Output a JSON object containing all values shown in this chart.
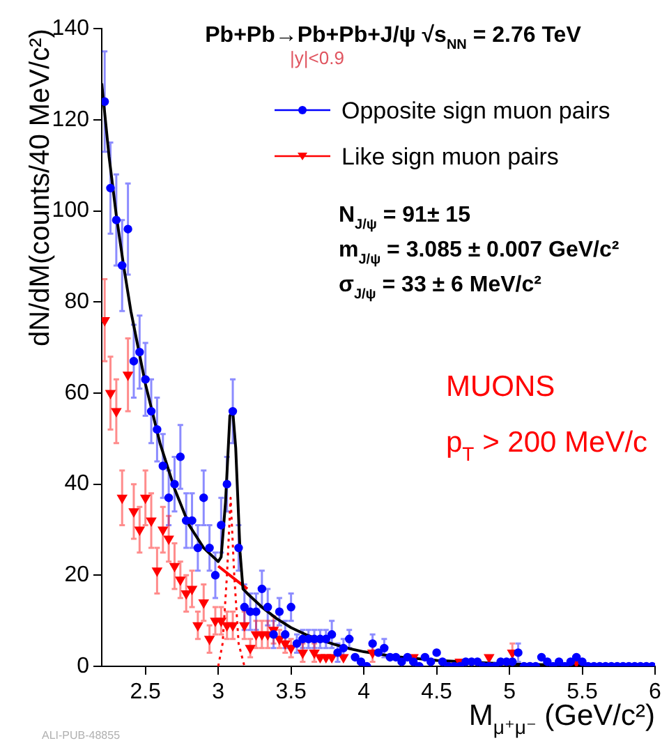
{
  "chart_data": {
    "type": "scatter",
    "title": "Pb+Pb→Pb+Pb+J/ψ √s$_{NN}$ = 2.76 TeV",
    "xlabel": "M$_{μ⁺μ⁻}$ (GeV/c²)",
    "ylabel": "dN/dM(counts/40 MeV/c²)",
    "xlim": [
      2.2,
      6
    ],
    "xticks": [
      2.5,
      3,
      3.5,
      4,
      4.5,
      5,
      5.5,
      6
    ],
    "ylim": [
      0,
      140
    ],
    "yticks": [
      0,
      20,
      40,
      60,
      80,
      100,
      120,
      140
    ],
    "grid": false,
    "legend": "top right",
    "annotations": [
      "|y|<0.9",
      "N$_{J/ψ}$ = 91± 15",
      "m$_{J/ψ}$ = 3.085 ± 0.007 GeV/c²",
      "σ$_{J/ψ}$ = 33 ± 6 MeV/c²",
      "MUONS",
      "p$_{T}$ > 200 MeV/c",
      "ALI-PUB-48855"
    ],
    "series": [
      {
        "name": "Opposite sign muon pairs",
        "marker": "circle",
        "color": "#0000ff",
        "x": [
          2.22,
          2.26,
          2.3,
          2.34,
          2.38,
          2.42,
          2.46,
          2.5,
          2.54,
          2.58,
          2.62,
          2.66,
          2.7,
          2.74,
          2.78,
          2.82,
          2.86,
          2.9,
          2.94,
          2.98,
          3.02,
          3.06,
          3.1,
          3.14,
          3.18,
          3.22,
          3.26,
          3.3,
          3.34,
          3.38,
          3.42,
          3.46,
          3.5,
          3.54,
          3.58,
          3.62,
          3.66,
          3.7,
          3.74,
          3.78,
          3.82,
          3.86,
          3.9,
          3.94,
          3.98,
          4.02,
          4.06,
          4.1,
          4.14,
          4.18,
          4.22,
          4.26,
          4.3,
          4.34,
          4.38,
          4.42,
          4.46,
          4.5,
          4.54,
          4.58,
          4.62,
          4.66,
          4.7,
          4.74,
          4.78,
          4.82,
          4.86,
          4.9,
          4.94,
          4.98,
          5.02,
          5.06,
          5.1,
          5.14,
          5.18,
          5.22,
          5.26,
          5.3,
          5.34,
          5.38,
          5.42,
          5.46,
          5.5,
          5.54,
          5.58,
          5.62,
          5.66,
          5.7,
          5.74,
          5.78,
          5.82,
          5.86,
          5.9,
          5.94,
          5.98
        ],
        "values": [
          124,
          105,
          98,
          88,
          96,
          67,
          69,
          63,
          56,
          52,
          44,
          37,
          40,
          46,
          32,
          32,
          26,
          37,
          26,
          20,
          31,
          40,
          56,
          26,
          13,
          12,
          12,
          17,
          13,
          7,
          12,
          7,
          13,
          5,
          6,
          6,
          6,
          6,
          6,
          7,
          3,
          4,
          6,
          2,
          1,
          0,
          5,
          3,
          4,
          2,
          2,
          1,
          2,
          1,
          0,
          2,
          1,
          3,
          1,
          0,
          0,
          0,
          1,
          1,
          1,
          0,
          0,
          0,
          1,
          1,
          1,
          3,
          0,
          0,
          0,
          2,
          1,
          0,
          1,
          0,
          1,
          2,
          1,
          0,
          0,
          0,
          0,
          0,
          0,
          0,
          0,
          0,
          0,
          0,
          0
        ],
        "errors": [
          11,
          10,
          10,
          10,
          10,
          8,
          8,
          8,
          7,
          7,
          7,
          6,
          6,
          7,
          6,
          6,
          5,
          6,
          5,
          5,
          6,
          6,
          7,
          5,
          5,
          4,
          4,
          4,
          4,
          3,
          3,
          3,
          3,
          2,
          2,
          2,
          2,
          2,
          2,
          3,
          2,
          2,
          2,
          null,
          null,
          null,
          2,
          null,
          2,
          null,
          null,
          null,
          null,
          null,
          null,
          null,
          null,
          null,
          null,
          null,
          null,
          null,
          null,
          null,
          null,
          null,
          null,
          null,
          null,
          null,
          null,
          2,
          null,
          null,
          null,
          null,
          null,
          null,
          null,
          null,
          null,
          null,
          null,
          null,
          null,
          null,
          null,
          null,
          null,
          null,
          null,
          null,
          null,
          null,
          null
        ]
      },
      {
        "name": "Like sign muon pairs",
        "marker": "triangle",
        "color": "#ff0000",
        "x": [
          2.22,
          2.26,
          2.3,
          2.34,
          2.38,
          2.42,
          2.46,
          2.5,
          2.54,
          2.58,
          2.62,
          2.66,
          2.7,
          2.74,
          2.78,
          2.82,
          2.86,
          2.9,
          2.94,
          2.98,
          3.02,
          3.06,
          3.1,
          3.18,
          3.22,
          3.26,
          3.3,
          3.34,
          3.38,
          3.42,
          3.46,
          3.5,
          3.58,
          3.66,
          3.7,
          3.74,
          3.78,
          3.86,
          4.06,
          4.34,
          4.66,
          4.86,
          5.02,
          5.46
        ],
        "values": [
          76,
          60,
          56,
          37,
          64,
          34,
          30,
          37,
          32,
          21,
          30,
          28,
          22,
          19,
          16,
          17,
          9,
          14,
          6,
          10,
          10,
          9,
          9,
          9,
          4,
          7,
          7,
          7,
          8,
          6,
          5,
          4,
          3,
          3,
          2,
          2,
          2,
          2,
          3,
          2,
          1,
          2,
          3,
          1
        ],
        "errors": [
          9,
          8,
          7,
          6,
          8,
          6,
          5,
          6,
          6,
          5,
          5,
          5,
          5,
          4,
          4,
          4,
          3,
          4,
          3,
          3,
          3,
          3,
          3,
          3,
          2,
          3,
          3,
          3,
          3,
          2,
          2,
          2,
          2,
          2,
          null,
          null,
          null,
          null,
          2,
          null,
          null,
          null,
          2,
          null
        ]
      },
      {
        "type": "line",
        "marker": "none",
        "line_style": "solid",
        "color": "#000000",
        "x": [
          2.2,
          2.25,
          2.3,
          2.35,
          2.4,
          2.5,
          2.6,
          2.7,
          2.8,
          2.9,
          3.0,
          3.02,
          3.05,
          3.08,
          3.1,
          3.12,
          3.15,
          3.17,
          3.2,
          3.3,
          3.4,
          3.5,
          3.6,
          3.7,
          3.8,
          3.9,
          4.0,
          4.2,
          4.5,
          5.0,
          5.5,
          6.0
        ],
        "values": [
          128,
          112,
          99,
          88,
          78,
          62,
          49,
          39,
          31,
          26,
          23,
          24,
          36,
          55,
          56,
          48,
          25,
          17,
          16,
          13,
          10.5,
          8.5,
          7,
          5.8,
          4.8,
          3.9,
          3.2,
          2.2,
          1.3,
          0.5,
          0.2,
          0.1
        ]
      },
      {
        "type": "line",
        "marker": "none",
        "line_style": "solid",
        "color": "#ff0000",
        "x": [
          3.0,
          3.1,
          3.2
        ],
        "values": [
          22,
          19.5,
          17
        ]
      },
      {
        "type": "line",
        "marker": "none",
        "line_style": "dotted",
        "color": "#ff0000",
        "x": [
          3.0,
          3.03,
          3.06,
          3.085,
          3.11,
          3.14,
          3.18
        ],
        "values": [
          0,
          5,
          20,
          37,
          20,
          5,
          0
        ]
      }
    ]
  }
}
